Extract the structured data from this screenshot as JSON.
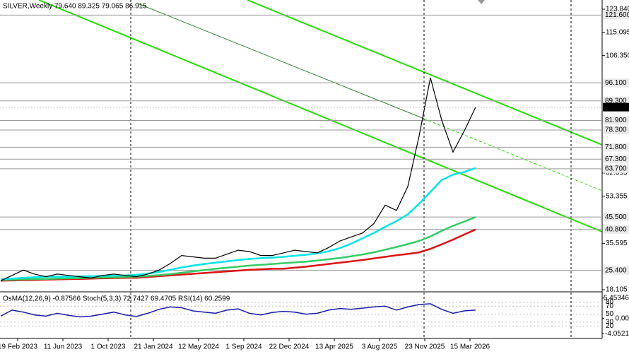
{
  "chart_data": {
    "type": "line",
    "title": "SILVER,Weekly  79.640 89.325 79.065 86.915",
    "x": [
      0,
      4,
      8,
      12,
      16,
      20,
      24,
      28,
      32,
      36,
      40,
      44,
      48,
      52,
      56,
      60,
      64,
      68,
      72,
      76,
      80,
      84,
      88,
      92,
      96,
      100,
      104,
      108,
      112,
      116,
      120,
      124,
      128,
      132,
      136,
      140,
      144,
      148,
      152,
      156,
      160,
      164,
      168
    ],
    "series": [
      {
        "color": "#000000",
        "values": [
          21.5,
          23.5,
          25.5,
          24,
          23,
          24,
          23.5,
          23,
          22.5,
          23.5,
          24,
          23.5,
          23,
          24,
          25.5,
          28,
          31,
          30.5,
          30,
          30,
          31.5,
          33,
          32.5,
          31,
          31,
          32,
          33,
          32.5,
          32,
          34,
          36.5,
          38,
          39.5,
          43,
          50,
          48,
          57,
          76,
          98,
          82,
          70,
          78,
          86.915
        ]
      },
      {
        "color": "#00e5e5",
        "values": [
          22,
          22.3,
          22.6,
          22.8,
          23,
          23,
          23,
          23.1,
          23.2,
          23.3,
          23.4,
          23.5,
          23.7,
          24.2,
          24.8,
          25.6,
          26.5,
          27.2,
          27.8,
          28.3,
          28.8,
          29.3,
          29.7,
          30,
          30.2,
          30.5,
          30.9,
          31.3,
          31.8,
          32.6,
          33.8,
          35.5,
          37.5,
          39.5,
          41.8,
          44,
          46.5,
          50.5,
          55,
          59.5,
          61.5,
          62.5,
          64
        ]
      },
      {
        "color": "#33cc66",
        "values": [
          21.8,
          21.9,
          22,
          22.1,
          22.2,
          22.3,
          22.4,
          22.5,
          22.6,
          22.7,
          22.8,
          22.9,
          23,
          23.3,
          23.6,
          24,
          24.5,
          25,
          25.5,
          26,
          26.4,
          26.8,
          27.2,
          27.5,
          27.8,
          28.1,
          28.4,
          28.7,
          29.1,
          29.6,
          30.1,
          30.7,
          31.4,
          32.2,
          33.2,
          34.2,
          35.3,
          36.5,
          38.2,
          40.3,
          42.2,
          43.8,
          45.5
        ]
      },
      {
        "color": "#dd1111",
        "values": [
          21.5,
          21.6,
          21.7,
          21.8,
          21.9,
          22,
          22.1,
          22.2,
          22.3,
          22.4,
          22.5,
          22.55,
          22.6,
          22.9,
          23.2,
          23.5,
          23.8,
          24.1,
          24.4,
          24.7,
          25,
          25.3,
          25.6,
          25.8,
          26,
          26,
          26.4,
          26.8,
          27.3,
          27.8,
          28.3,
          28.8,
          29.3,
          29.9,
          30.5,
          31.1,
          31.6,
          32.2,
          33.5,
          35.2,
          37,
          38.9,
          40.8
        ]
      }
    ],
    "xlim": [
      -0.25,
      212.75
    ],
    "xticks": [
      {
        "value": 6,
        "label": "19 Feb 2023"
      },
      {
        "value": 22,
        "label": "11 Jun 2023"
      },
      {
        "value": 38,
        "label": "1 Oct 2023"
      },
      {
        "value": 54,
        "label": "21 Jan 2024"
      },
      {
        "value": 70,
        "label": "12 May 2024"
      },
      {
        "value": 86,
        "label": "1 Sep 2024"
      },
      {
        "value": 102,
        "label": "22 Dec 2024"
      },
      {
        "value": 118,
        "label": "13 Apr 2025"
      },
      {
        "value": 134,
        "label": "3 Aug 2025"
      },
      {
        "value": 150,
        "label": "23 Nov 2025"
      },
      {
        "value": 166,
        "label": "15 Mar 2026"
      }
    ],
    "ylim": [
      17.58,
      127.3
    ],
    "yticks": [
      {
        "value": 123.84,
        "label": "123.840"
      },
      115.095,
      {
        "value": 106.35,
        "label": "106.350"
      },
      62.095,
      53.355,
      35.595,
      18.105
    ],
    "levels": [
      {
        "value": 121.6,
        "label": "121.600"
      },
      {
        "value": 96.1,
        "label": "96.100"
      },
      {
        "value": 89.3,
        "label": "89.300"
      },
      {
        "value": 81.9,
        "label": "81.900"
      },
      {
        "value": 78.3,
        "label": "78.300"
      },
      {
        "value": 71.8,
        "label": "71.800"
      },
      {
        "value": 67.3,
        "label": "67.300"
      },
      {
        "value": 63.7,
        "label": "63.700"
      },
      {
        "value": 45.5,
        "label": "45.500"
      },
      {
        "value": 40.8,
        "label": "40.800"
      },
      {
        "value": 25.4,
        "label": "25.400"
      }
    ],
    "current": 86.915,
    "indicator": {
      "header": "OsMA(12,26,9) -0.87566  Stoch(5,3,3) 72.7427 69.4705  RSI(14) 60.2599",
      "color": "#1a1aa6",
      "values": [
        45,
        60,
        55,
        48,
        45,
        52,
        47,
        43,
        45,
        50,
        55,
        48,
        44,
        52,
        62,
        68,
        66,
        58,
        55,
        52,
        60,
        63,
        52,
        48,
        54,
        57,
        55,
        50,
        52,
        60,
        64,
        62,
        65,
        68,
        70,
        60,
        68,
        74,
        76,
        62,
        52,
        58,
        60.2599
      ],
      "ylim": [
        -9.2,
        102.3
      ],
      "yticks": [
        80,
        70,
        50,
        30,
        20
      ],
      "y2lim": [
        -5.15,
        6.73
      ],
      "y2ticks": [
        5.45346,
        {
          "value": 0,
          "label": "0.00"
        },
        -4.0521
      ]
    }
  }
}
